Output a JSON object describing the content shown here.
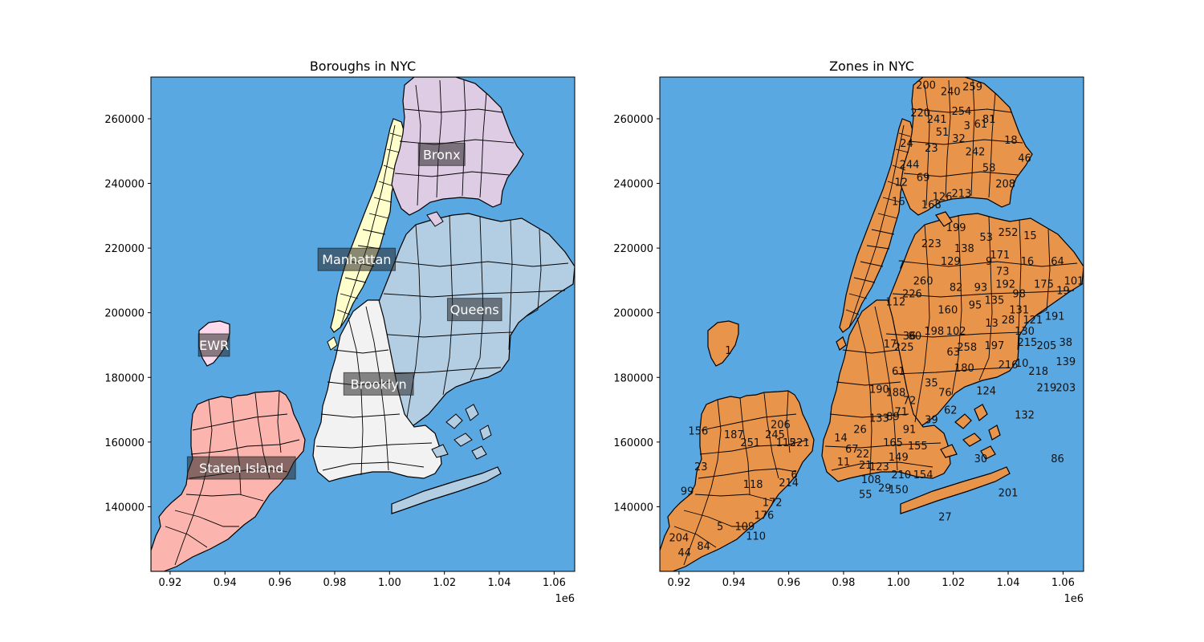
{
  "figure": {
    "background": "#ffffff",
    "water_color": "#5aa8e2"
  },
  "chart_data": [
    {
      "type": "map",
      "title": "Boroughs in NYC",
      "x_tick_labels": [
        "0.92",
        "0.94",
        "0.96",
        "0.98",
        "1.00",
        "1.02",
        "1.04",
        "1.06"
      ],
      "x_offset_label": "1e6",
      "y_tick_labels": [
        "140000",
        "160000",
        "180000",
        "200000",
        "220000",
        "240000",
        "260000"
      ],
      "xlim": [
        913000,
        1067500
      ],
      "ylim": [
        120000,
        272900
      ],
      "regions": [
        {
          "name": "Manhattan",
          "color": "#ffffcc",
          "label": "Manhattan",
          "label_at": [
            988000,
            216500
          ]
        },
        {
          "name": "Bronx",
          "color": "#decbe4",
          "label": "Bronx",
          "label_at": [
            1019000,
            249000
          ]
        },
        {
          "name": "Queens",
          "color": "#b3cde3",
          "label": "Queens",
          "label_at": [
            1031000,
            201000
          ]
        },
        {
          "name": "Brooklyn",
          "color": "#f2f2f2",
          "label": "Brooklyn",
          "label_at": [
            996000,
            178000
          ]
        },
        {
          "name": "Staten Island",
          "color": "#fbb4ae",
          "label": "Staten Island",
          "label_at": [
            946000,
            152000
          ]
        },
        {
          "name": "EWR",
          "color": "#fddaec",
          "label": "EWR",
          "label_at": [
            936000,
            190000
          ]
        }
      ]
    },
    {
      "type": "map",
      "title": "Zones in NYC",
      "fill_color": "#e8944a",
      "x_tick_labels": [
        "0.92",
        "0.94",
        "0.96",
        "0.98",
        "1.00",
        "1.02",
        "1.04",
        "1.06"
      ],
      "x_offset_label": "1e6",
      "y_tick_labels": [
        "140000",
        "160000",
        "180000",
        "200000",
        "220000",
        "240000",
        "260000"
      ],
      "xlim": [
        913000,
        1067500
      ],
      "ylim": [
        120000,
        272900
      ],
      "zone_labels": [
        {
          "t": "200",
          "at": [
            1010000,
            270500
          ]
        },
        {
          "t": "240",
          "at": [
            1019000,
            268500
          ]
        },
        {
          "t": "259",
          "at": [
            1027000,
            270000
          ]
        },
        {
          "t": "220",
          "at": [
            1008000,
            262000
          ]
        },
        {
          "t": "241",
          "at": [
            1014000,
            260000
          ]
        },
        {
          "t": "254",
          "at": [
            1023000,
            262500
          ]
        },
        {
          "t": "81",
          "at": [
            1033000,
            260000
          ]
        },
        {
          "t": "3",
          "at": [
            1025000,
            258000
          ]
        },
        {
          "t": "61",
          "at": [
            1030000,
            258500
          ]
        },
        {
          "t": "51",
          "at": [
            1016000,
            256000
          ]
        },
        {
          "t": "18",
          "at": [
            1041000,
            253500
          ]
        },
        {
          "t": "32",
          "at": [
            1022000,
            254000
          ]
        },
        {
          "t": "24",
          "at": [
            1003000,
            252500
          ]
        },
        {
          "t": "23",
          "at": [
            1012000,
            251000
          ]
        },
        {
          "t": "46",
          "at": [
            1046000,
            248000
          ]
        },
        {
          "t": "242",
          "at": [
            1028000,
            250000
          ]
        },
        {
          "t": "244",
          "at": [
            1004000,
            246000
          ]
        },
        {
          "t": "58",
          "at": [
            1033000,
            245000
          ]
        },
        {
          "t": "12",
          "at": [
            1001000,
            240500
          ]
        },
        {
          "t": "69",
          "at": [
            1009000,
            242000
          ]
        },
        {
          "t": "208",
          "at": [
            1039000,
            240000
          ]
        },
        {
          "t": "213",
          "at": [
            1023000,
            237000
          ]
        },
        {
          "t": "126",
          "at": [
            1016000,
            236000
          ]
        },
        {
          "t": "168",
          "at": [
            1012000,
            233500
          ]
        },
        {
          "t": "16",
          "at": [
            1000000,
            234500
          ]
        },
        {
          "t": "199",
          "at": [
            1021000,
            226500
          ]
        },
        {
          "t": "252",
          "at": [
            1040000,
            225000
          ]
        },
        {
          "t": "15",
          "at": [
            1048000,
            224000
          ]
        },
        {
          "t": "53",
          "at": [
            1032000,
            223500
          ]
        },
        {
          "t": "223",
          "at": [
            1012000,
            221500
          ]
        },
        {
          "t": "138",
          "at": [
            1024000,
            220000
          ]
        },
        {
          "t": "171",
          "at": [
            1037000,
            218000
          ]
        },
        {
          "t": "9",
          "at": [
            1033000,
            216000
          ]
        },
        {
          "t": "16",
          "at": [
            1047000,
            216000
          ]
        },
        {
          "t": "64",
          "at": [
            1058000,
            216000
          ]
        },
        {
          "t": "129",
          "at": [
            1019000,
            216000
          ]
        },
        {
          "t": "7",
          "at": [
            1001000,
            215000
          ]
        },
        {
          "t": "73",
          "at": [
            1038000,
            213000
          ]
        },
        {
          "t": "260",
          "at": [
            1009000,
            210000
          ]
        },
        {
          "t": "192",
          "at": [
            1039000,
            209000
          ]
        },
        {
          "t": "175",
          "at": [
            1053000,
            209000
          ]
        },
        {
          "t": "101",
          "at": [
            1064000,
            210000
          ]
        },
        {
          "t": "19",
          "at": [
            1060000,
            207000
          ]
        },
        {
          "t": "98",
          "at": [
            1044000,
            206000
          ]
        },
        {
          "t": "226",
          "at": [
            1005000,
            206000
          ]
        },
        {
          "t": "82",
          "at": [
            1021000,
            208000
          ]
        },
        {
          "t": "112",
          "at": [
            999000,
            203500
          ]
        },
        {
          "t": "93",
          "at": [
            1030000,
            208000
          ]
        },
        {
          "t": "135",
          "at": [
            1035000,
            204000
          ]
        },
        {
          "t": "160",
          "at": [
            1018000,
            201000
          ]
        },
        {
          "t": "95",
          "at": [
            1028000,
            202500
          ]
        },
        {
          "t": "131",
          "at": [
            1044000,
            201000
          ]
        },
        {
          "t": "121",
          "at": [
            1049000,
            198000
          ]
        },
        {
          "t": "191",
          "at": [
            1057000,
            199000
          ]
        },
        {
          "t": "13",
          "at": [
            1034000,
            197000
          ]
        },
        {
          "t": "28",
          "at": [
            1040000,
            198000
          ]
        },
        {
          "t": "198",
          "at": [
            1013000,
            194500
          ]
        },
        {
          "t": "130",
          "at": [
            1046000,
            194500
          ]
        },
        {
          "t": "80",
          "at": [
            1006000,
            193000
          ]
        },
        {
          "t": "102",
          "at": [
            1021000,
            194500
          ]
        },
        {
          "t": "36",
          "at": [
            1004000,
            193000
          ]
        },
        {
          "t": "215",
          "at": [
            1047000,
            191000
          ]
        },
        {
          "t": "205",
          "at": [
            1054000,
            190000
          ]
        },
        {
          "t": "38",
          "at": [
            1061000,
            191000
          ]
        },
        {
          "t": "197",
          "at": [
            1035000,
            190000
          ]
        },
        {
          "t": "258",
          "at": [
            1025000,
            189500
          ]
        },
        {
          "t": "225",
          "at": [
            1002000,
            189500
          ]
        },
        {
          "t": "17",
          "at": [
            997000,
            190500
          ]
        },
        {
          "t": "63",
          "at": [
            1020000,
            188000
          ]
        },
        {
          "t": "216",
          "at": [
            1040000,
            184000
          ]
        },
        {
          "t": "10",
          "at": [
            1045000,
            184500
          ]
        },
        {
          "t": "139",
          "at": [
            1061000,
            185000
          ]
        },
        {
          "t": "218",
          "at": [
            1051000,
            182000
          ]
        },
        {
          "t": "180",
          "at": [
            1024000,
            183000
          ]
        },
        {
          "t": "61",
          "at": [
            1000000,
            182000
          ]
        },
        {
          "t": "35",
          "at": [
            1012000,
            178500
          ]
        },
        {
          "t": "124",
          "at": [
            1032000,
            176000
          ]
        },
        {
          "t": "219",
          "at": [
            1054000,
            177000
          ]
        },
        {
          "t": "203",
          "at": [
            1061000,
            177000
          ]
        },
        {
          "t": "76",
          "at": [
            1017000,
            175500
          ]
        },
        {
          "t": "188",
          "at": [
            999000,
            175500
          ]
        },
        {
          "t": "190",
          "at": [
            993000,
            176500
          ]
        },
        {
          "t": "72",
          "at": [
            1004000,
            173000
          ]
        },
        {
          "t": "132",
          "at": [
            1046000,
            168500
          ]
        },
        {
          "t": "71",
          "at": [
            1001000,
            169500
          ]
        },
        {
          "t": "39",
          "at": [
            1012000,
            167000
          ]
        },
        {
          "t": "62",
          "at": [
            1019000,
            170000
          ]
        },
        {
          "t": "133",
          "at": [
            993000,
            167500
          ]
        },
        {
          "t": "89",
          "at": [
            998000,
            168000
          ]
        },
        {
          "t": "26",
          "at": [
            986000,
            164000
          ]
        },
        {
          "t": "91",
          "at": [
            1004000,
            164000
          ]
        },
        {
          "t": "14",
          "at": [
            979000,
            161500
          ]
        },
        {
          "t": "67",
          "at": [
            983000,
            158000
          ]
        },
        {
          "t": "165",
          "at": [
            998000,
            160000
          ]
        },
        {
          "t": "155",
          "at": [
            1007000,
            159000
          ]
        },
        {
          "t": "22",
          "at": [
            987000,
            156500
          ]
        },
        {
          "t": "149",
          "at": [
            1000000,
            155500
          ]
        },
        {
          "t": "21",
          "at": [
            988000,
            153000
          ]
        },
        {
          "t": "123",
          "at": [
            993000,
            152500
          ]
        },
        {
          "t": "11",
          "at": [
            980000,
            154000
          ]
        },
        {
          "t": "210",
          "at": [
            1001000,
            150000
          ]
        },
        {
          "t": "154",
          "at": [
            1009000,
            150000
          ]
        },
        {
          "t": "108",
          "at": [
            990000,
            148500
          ]
        },
        {
          "t": "55",
          "at": [
            988000,
            144000
          ]
        },
        {
          "t": "150",
          "at": [
            1000000,
            145500
          ]
        },
        {
          "t": "29",
          "at": [
            995000,
            146000
          ]
        },
        {
          "t": "30",
          "at": [
            1030000,
            155000
          ]
        },
        {
          "t": "86",
          "at": [
            1058000,
            155000
          ]
        },
        {
          "t": "201",
          "at": [
            1040000,
            144500
          ]
        },
        {
          "t": "27",
          "at": [
            1017000,
            137000
          ]
        },
        {
          "t": "156",
          "at": [
            927000,
            163500
          ]
        },
        {
          "t": "187",
          "at": [
            940000,
            162500
          ]
        },
        {
          "t": "206",
          "at": [
            957000,
            165500
          ]
        },
        {
          "t": "245",
          "at": [
            955000,
            162500
          ]
        },
        {
          "t": "251",
          "at": [
            946000,
            160000
          ]
        },
        {
          "t": "115",
          "at": [
            959000,
            160000
          ]
        },
        {
          "t": "221",
          "at": [
            964000,
            160000
          ]
        },
        {
          "t": "23",
          "at": [
            928000,
            152500
          ]
        },
        {
          "t": "6",
          "at": [
            962000,
            150000
          ]
        },
        {
          "t": "118",
          "at": [
            947000,
            147000
          ]
        },
        {
          "t": "214",
          "at": [
            960000,
            147500
          ]
        },
        {
          "t": "99",
          "at": [
            923000,
            145000
          ]
        },
        {
          "t": "172",
          "at": [
            954000,
            141500
          ]
        },
        {
          "t": "176",
          "at": [
            951000,
            137500
          ]
        },
        {
          "t": "5",
          "at": [
            935000,
            134000
          ]
        },
        {
          "t": "109",
          "at": [
            944000,
            134000
          ]
        },
        {
          "t": "110",
          "at": [
            948000,
            131000
          ]
        },
        {
          "t": "204",
          "at": [
            920000,
            130500
          ]
        },
        {
          "t": "84",
          "at": [
            929000,
            128000
          ]
        },
        {
          "t": "44",
          "at": [
            922000,
            126000
          ]
        },
        {
          "t": "1",
          "at": [
            938000,
            188500
          ]
        }
      ]
    }
  ]
}
